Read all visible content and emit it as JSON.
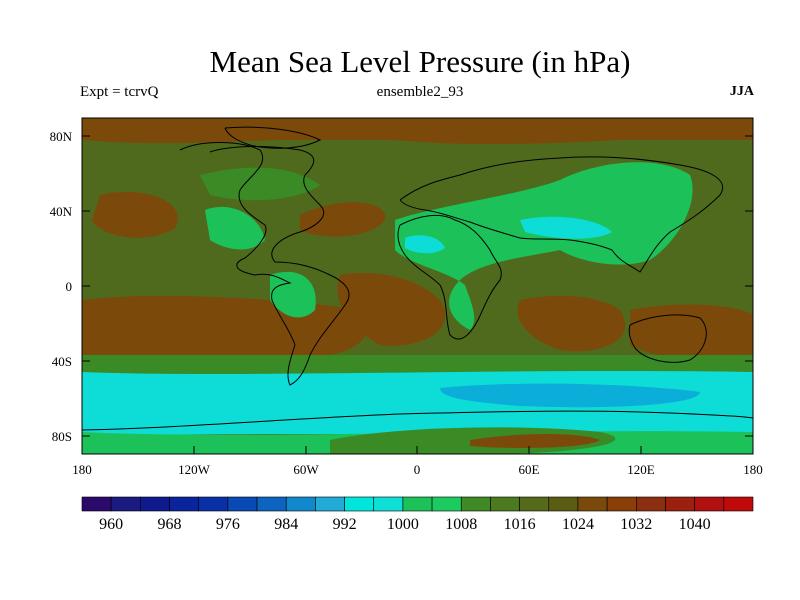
{
  "title": "Mean Sea Level Pressure (in hPa)",
  "subtitle_left": "Expt = tcrvQ",
  "subtitle_center": "ensemble2_93",
  "subtitle_right": "JJA",
  "lat_labels": [
    "80N",
    "40N",
    "0",
    "40S",
    "80S"
  ],
  "lon_labels": [
    "180",
    "120W",
    "60W",
    "0",
    "60E",
    "120E",
    "180"
  ],
  "colorbar": {
    "colors": [
      "#2c0a6b",
      "#1a1a80",
      "#101a8f",
      "#0a249e",
      "#0a30a8",
      "#0a4ab4",
      "#0c64c0",
      "#1188cc",
      "#22aad6",
      "#00e6dc",
      "#0ee0d8",
      "#1dc15a",
      "#1ccb60",
      "#3f8a26",
      "#4c7a1e",
      "#556a1a",
      "#5a5c14",
      "#7a4a0a",
      "#8a3e08",
      "#8e2e10",
      "#9c2010",
      "#b01010",
      "#c00a0a"
    ],
    "labels": [
      "960",
      "968",
      "976",
      "984",
      "992",
      "1000",
      "1008",
      "1016",
      "1024",
      "1032",
      "1040"
    ]
  },
  "fields": {
    "background": "#4f6a1c",
    "high_pressure": "#7b4a0b",
    "mid": "#3a8a26",
    "low": "#1dc15a",
    "very_low": "#0edcd6",
    "deep_low": "#0aaed8",
    "coast": "#000000"
  }
}
